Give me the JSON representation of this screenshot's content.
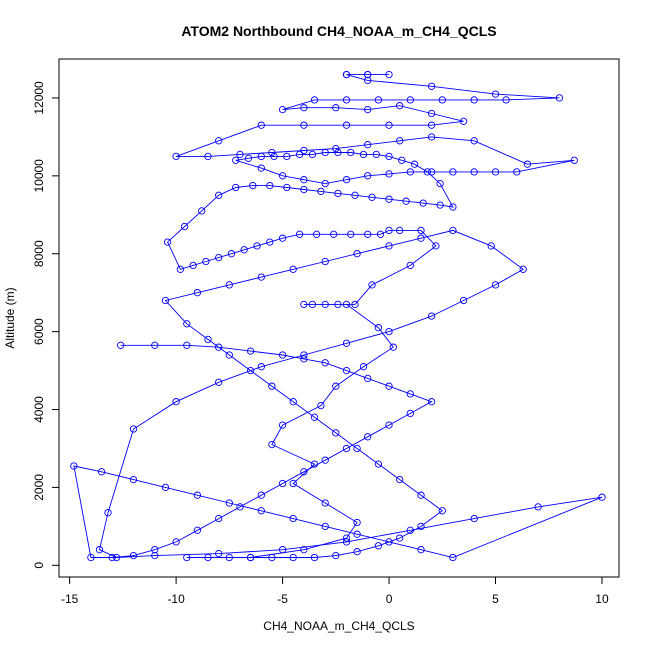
{
  "chart_data": {
    "type": "line",
    "title": "ATOM2 Northbound CH4_NOAA_m_CH4_QCLS",
    "xlabel": "CH4_NOAA_m_CH4_QCLS",
    "ylabel": "Altitude (m)",
    "xlim": [
      -15.5,
      10.8
    ],
    "ylim": [
      -300,
      13000
    ],
    "x_ticks": [
      -15,
      -10,
      -5,
      0,
      5,
      10
    ],
    "y_ticks": [
      0,
      2000,
      4000,
      6000,
      8000,
      10000,
      12000
    ],
    "grid": false,
    "legend": "none",
    "colors": {
      "series": "#0000ff",
      "frame": "#000000"
    },
    "marker": "open-circle",
    "series": [
      {
        "x": [
          -6.5,
          -4.0,
          -2.0,
          -1.5,
          -3.0,
          -4.5,
          -3.5,
          -5.5,
          -5.0,
          -3.2,
          -2.5,
          -1.2,
          0.2,
          -0.5,
          -2.0,
          -3.0,
          -4.0,
          -3.6,
          -2.4,
          -1.6,
          -0.8,
          1.0,
          2.2,
          1.5,
          0.5,
          0.0,
          -0.4,
          -1.0,
          -1.8,
          -2.6,
          -3.4,
          -4.2,
          -5.0,
          -5.6,
          -6.2,
          -6.8,
          -7.4,
          -8.0,
          -8.6,
          -9.2,
          -9.8,
          -10.4,
          -9.6,
          -8.8,
          -8.0,
          -7.2,
          -6.4,
          -5.6,
          -4.8,
          -4.0,
          -3.2,
          -2.4,
          -1.6,
          -0.8,
          0.0,
          0.8,
          1.6,
          2.4,
          3.0,
          2.4,
          1.8,
          1.2,
          0.6,
          0.0,
          -0.6,
          -1.2,
          -1.8,
          -2.4,
          -3.0,
          -3.6,
          -4.2,
          -4.8,
          -5.4,
          -6.0,
          -6.6,
          -7.2,
          -6.0,
          -5.0,
          -4.0,
          -3.0,
          -2.0,
          -1.0,
          0.0,
          1.0,
          2.0,
          3.0,
          4.0,
          5.0,
          6.0,
          8.7,
          6.5,
          4.0,
          2.0,
          0.5,
          -1.0,
          -2.5,
          -4.0,
          -5.5,
          -7.0,
          -8.5,
          -10.0,
          -8.0,
          -6.0,
          -4.0,
          -2.0,
          0.0,
          2.0,
          3.5,
          2.0,
          0.5,
          -1.0,
          -2.5,
          -4.0,
          -5.0,
          -3.5,
          -2.0,
          -0.5,
          1.0,
          2.5,
          4.0,
          5.5,
          8.0,
          5.0,
          2.0,
          -1.0,
          -2.0,
          -1.0,
          0.0,
          -1.0,
          -2.0
        ]
      },
      {
        "x": [
          -12.6,
          -11.0,
          -9.5,
          -8.0,
          -6.5,
          -5.0,
          -4.0,
          -3.0,
          -2.0,
          -1.0,
          0.0,
          1.0,
          2.0,
          1.0,
          0.0,
          -1.0,
          -2.0,
          -3.0,
          -4.0,
          -5.0,
          -6.0,
          -7.0,
          -8.0,
          -9.0,
          -10.0,
          -11.0,
          -12.0,
          -13.0,
          -14.0,
          -14.8,
          -13.5,
          -12.0,
          -10.5,
          -9.0,
          -7.5,
          -6.0,
          -4.5,
          -3.0,
          -1.5,
          0.0,
          1.5,
          3.0,
          10.0,
          7.0,
          4.0,
          1.0,
          -2.0,
          -5.0,
          -8.0,
          -11.0,
          -12.8,
          -13.6,
          -13.2,
          -12.0,
          -10.0,
          -8.0,
          -6.0,
          -4.0,
          -2.0,
          0.0,
          2.0,
          3.5,
          5.0,
          6.3,
          4.8,
          3.0,
          1.5,
          0.0,
          -1.5,
          -3.0,
          -4.5,
          -6.0,
          -7.5,
          -9.0,
          -10.5,
          -9.5,
          -8.5,
          -7.5,
          -6.5,
          -5.5,
          -4.5,
          -3.5,
          -2.5,
          -1.5,
          -0.5,
          0.5,
          1.5,
          2.5,
          1.5,
          0.5,
          -0.5,
          -1.5,
          -2.5,
          -3.5,
          -4.5,
          -5.5,
          -6.5,
          -7.5,
          -8.5,
          -9.5
        ]
      }
    ],
    "series_y": [
      [
        200,
        400,
        700,
        1100,
        1600,
        2100,
        2600,
        3100,
        3600,
        4100,
        4600,
        5100,
        5600,
        6100,
        6700,
        6700,
        6700,
        6700,
        6700,
        6700,
        7200,
        7700,
        8200,
        8600,
        8600,
        8600,
        8500,
        8500,
        8500,
        8500,
        8500,
        8500,
        8400,
        8300,
        8200,
        8100,
        8000,
        7900,
        7800,
        7700,
        7600,
        8300,
        8700,
        9100,
        9500,
        9700,
        9750,
        9750,
        9700,
        9650,
        9600,
        9550,
        9500,
        9450,
        9400,
        9350,
        9300,
        9250,
        9200,
        9800,
        10100,
        10300,
        10400,
        10500,
        10550,
        10550,
        10600,
        10600,
        10600,
        10550,
        10550,
        10500,
        10500,
        10500,
        10450,
        10400,
        10200,
        10000,
        9900,
        9800,
        9900,
        10000,
        10050,
        10100,
        10100,
        10100,
        10100,
        10100,
        10100,
        10400,
        10300,
        10900,
        11000,
        10900,
        10800,
        10700,
        10650,
        10600,
        10550,
        10500,
        10500,
        10900,
        11300,
        11300,
        11300,
        11300,
        11300,
        11400,
        11600,
        11800,
        11700,
        11750,
        11750,
        11700,
        11950,
        11950,
        11950,
        11950,
        11950,
        11950,
        11950,
        12000,
        12100,
        12300,
        12450,
        12600,
        12600,
        12600,
        12600,
        12600
      ],
      [
        5650,
        5650,
        5650,
        5600,
        5500,
        5400,
        5300,
        5200,
        5000,
        4800,
        4600,
        4400,
        4200,
        3900,
        3600,
        3300,
        3000,
        2700,
        2400,
        2100,
        1800,
        1500,
        1200,
        900,
        600,
        400,
        250,
        200,
        200,
        2550,
        2400,
        2200,
        2000,
        1800,
        1600,
        1400,
        1200,
        1000,
        800,
        600,
        400,
        200,
        1750,
        1500,
        1200,
        900,
        600,
        400,
        300,
        250,
        200,
        400,
        1350,
        3500,
        4200,
        4700,
        5100,
        5400,
        5700,
        6000,
        6400,
        6800,
        7200,
        7600,
        8200,
        8600,
        8400,
        8200,
        8000,
        7800,
        7600,
        7400,
        7200,
        7000,
        6800,
        6200,
        5800,
        5400,
        5000,
        4600,
        4200,
        3800,
        3400,
        3000,
        2600,
        2200,
        1800,
        1400,
        1000,
        700,
        500,
        350,
        250,
        200,
        200,
        200,
        200,
        200,
        200,
        200
      ]
    ]
  }
}
